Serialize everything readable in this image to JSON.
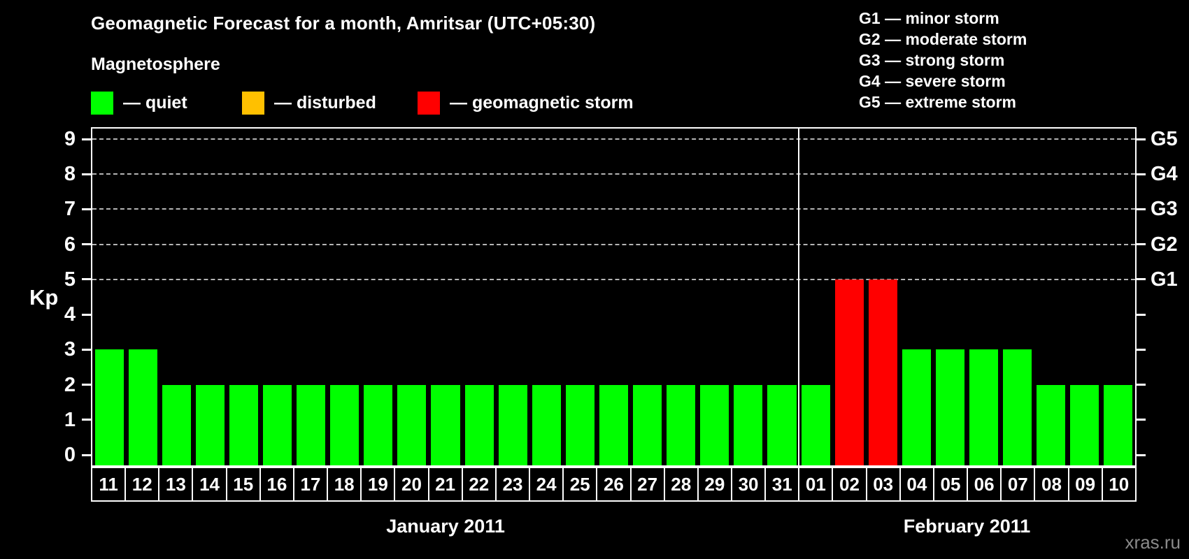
{
  "title": "Geomagnetic Forecast for a month, Amritsar (UTC+05:30)",
  "subtitle": "Magnetosphere",
  "magnetosphere_legend": [
    {
      "label": "— quiet",
      "state": "quiet",
      "color": "#00ff00"
    },
    {
      "label": "— disturbed",
      "state": "disturbed",
      "color": "#ffc000"
    },
    {
      "label": "— geomagnetic storm",
      "state": "storm",
      "color": "#ff0000"
    }
  ],
  "g_scale_legend": [
    "G1 — minor storm",
    "G2 — moderate storm",
    "G3 — strong storm",
    "G4 — severe storm",
    "G5 — extreme storm"
  ],
  "watermark": "xras.ru",
  "chart_data": {
    "type": "bar",
    "ylabel": "Kp",
    "ylim": [
      -0.3,
      9.3
    ],
    "yticks": [
      0,
      1,
      2,
      3,
      4,
      5,
      6,
      7,
      8,
      9
    ],
    "dashed_gridlines_at": [
      5,
      6,
      7,
      8,
      9
    ],
    "right_axis_labels": [
      {
        "kp": 5,
        "label": "G1"
      },
      {
        "kp": 6,
        "label": "G2"
      },
      {
        "kp": 7,
        "label": "G3"
      },
      {
        "kp": 8,
        "label": "G4"
      },
      {
        "kp": 9,
        "label": "G5"
      }
    ],
    "state_colors": {
      "quiet": "#00ff00",
      "disturbed": "#ffc000",
      "storm": "#ff0000"
    },
    "grid_color": "#b4b4b4",
    "axis_color": "#ffffff",
    "background": "#000000",
    "groups": [
      {
        "month": "January 2011",
        "days": [
          {
            "day": "11",
            "kp": 3,
            "state": "quiet"
          },
          {
            "day": "12",
            "kp": 3,
            "state": "quiet"
          },
          {
            "day": "13",
            "kp": 2,
            "state": "quiet"
          },
          {
            "day": "14",
            "kp": 2,
            "state": "quiet"
          },
          {
            "day": "15",
            "kp": 2,
            "state": "quiet"
          },
          {
            "day": "16",
            "kp": 2,
            "state": "quiet"
          },
          {
            "day": "17",
            "kp": 2,
            "state": "quiet"
          },
          {
            "day": "18",
            "kp": 2,
            "state": "quiet"
          },
          {
            "day": "19",
            "kp": 2,
            "state": "quiet"
          },
          {
            "day": "20",
            "kp": 2,
            "state": "quiet"
          },
          {
            "day": "21",
            "kp": 2,
            "state": "quiet"
          },
          {
            "day": "22",
            "kp": 2,
            "state": "quiet"
          },
          {
            "day": "23",
            "kp": 2,
            "state": "quiet"
          },
          {
            "day": "24",
            "kp": 2,
            "state": "quiet"
          },
          {
            "day": "25",
            "kp": 2,
            "state": "quiet"
          },
          {
            "day": "26",
            "kp": 2,
            "state": "quiet"
          },
          {
            "day": "27",
            "kp": 2,
            "state": "quiet"
          },
          {
            "day": "28",
            "kp": 2,
            "state": "quiet"
          },
          {
            "day": "29",
            "kp": 2,
            "state": "quiet"
          },
          {
            "day": "30",
            "kp": 2,
            "state": "quiet"
          },
          {
            "day": "31",
            "kp": 2,
            "state": "quiet"
          }
        ]
      },
      {
        "month": "February 2011",
        "days": [
          {
            "day": "01",
            "kp": 2,
            "state": "quiet"
          },
          {
            "day": "02",
            "kp": 5,
            "state": "storm"
          },
          {
            "day": "03",
            "kp": 5,
            "state": "storm"
          },
          {
            "day": "04",
            "kp": 3,
            "state": "quiet"
          },
          {
            "day": "05",
            "kp": 3,
            "state": "quiet"
          },
          {
            "day": "06",
            "kp": 3,
            "state": "quiet"
          },
          {
            "day": "07",
            "kp": 3,
            "state": "quiet"
          },
          {
            "day": "08",
            "kp": 2,
            "state": "quiet"
          },
          {
            "day": "09",
            "kp": 2,
            "state": "quiet"
          },
          {
            "day": "10",
            "kp": 2,
            "state": "quiet"
          }
        ]
      }
    ]
  }
}
